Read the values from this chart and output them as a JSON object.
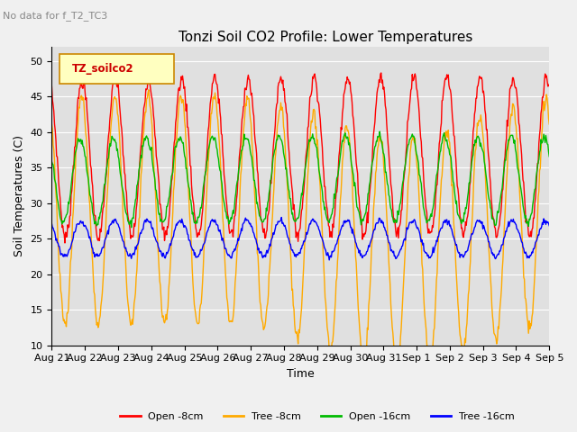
{
  "title": "Tonzi Soil CO2 Profile: Lower Temperatures",
  "subtitle": "No data for f_T2_TC3",
  "xlabel": "Time",
  "ylabel": "Soil Temperatures (C)",
  "ylim": [
    10,
    52
  ],
  "yticks": [
    10,
    15,
    20,
    25,
    30,
    35,
    40,
    45,
    50
  ],
  "legend_label": "TZ_soilco2",
  "series_labels": [
    "Open -8cm",
    "Tree -8cm",
    "Open -16cm",
    "Tree -16cm"
  ],
  "series_colors": [
    "#ff0000",
    "#ffaa00",
    "#00bb00",
    "#0000ff"
  ],
  "background_color": "#e0e0e0",
  "n_days": 15,
  "date_labels": [
    "Aug 21",
    "Aug 22",
    "Aug 23",
    "Aug 24",
    "Aug 25",
    "Aug 26",
    "Aug 27",
    "Aug 28",
    "Aug 29",
    "Aug 30",
    "Aug 31",
    "Sep 1",
    "Sep 2",
    "Sep 3",
    "Sep 4",
    "Sep 5"
  ]
}
